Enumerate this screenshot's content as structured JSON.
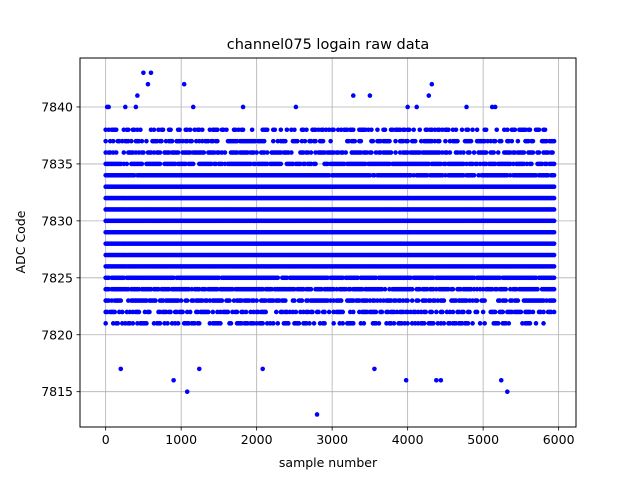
{
  "chart_data": {
    "type": "scatter",
    "title": "channel075 logain raw data",
    "xlabel": "sample number",
    "ylabel": "ADC Code",
    "xlim": [
      -340,
      6230
    ],
    "ylim": [
      7811.9,
      7844.3
    ],
    "xticks": [
      0,
      1000,
      2000,
      3000,
      4000,
      5000,
      6000
    ],
    "yticks": [
      7815,
      7820,
      7825,
      7830,
      7835,
      7840
    ],
    "grid": true,
    "marker_color": "#0000ff",
    "x_range": [
      0,
      5940
    ],
    "x_step": 20,
    "dense_level_range": [
      7821,
      7838
    ],
    "series": [
      {
        "outliers": [
          {
            "x": 20,
            "y": 7840
          },
          {
            "x": 40,
            "y": 7840
          },
          {
            "x": 200,
            "y": 7817
          },
          {
            "x": 260,
            "y": 7840
          },
          {
            "x": 400,
            "y": 7840
          },
          {
            "x": 420,
            "y": 7841
          },
          {
            "x": 500,
            "y": 7843
          },
          {
            "x": 560,
            "y": 7842
          },
          {
            "x": 600,
            "y": 7843
          },
          {
            "x": 900,
            "y": 7816
          },
          {
            "x": 1040,
            "y": 7842
          },
          {
            "x": 1080,
            "y": 7815
          },
          {
            "x": 1160,
            "y": 7840
          },
          {
            "x": 1240,
            "y": 7817
          },
          {
            "x": 1820,
            "y": 7840
          },
          {
            "x": 2080,
            "y": 7817
          },
          {
            "x": 2520,
            "y": 7840
          },
          {
            "x": 2800,
            "y": 7813
          },
          {
            "x": 3280,
            "y": 7841
          },
          {
            "x": 3500,
            "y": 7841
          },
          {
            "x": 3560,
            "y": 7817
          },
          {
            "x": 3980,
            "y": 7816
          },
          {
            "x": 4000,
            "y": 7840
          },
          {
            "x": 4120,
            "y": 7840
          },
          {
            "x": 4280,
            "y": 7841
          },
          {
            "x": 4320,
            "y": 7842
          },
          {
            "x": 4380,
            "y": 7816
          },
          {
            "x": 4440,
            "y": 7816
          },
          {
            "x": 4780,
            "y": 7840
          },
          {
            "x": 5120,
            "y": 7840
          },
          {
            "x": 5160,
            "y": 7840
          },
          {
            "x": 5240,
            "y": 7816
          },
          {
            "x": 5320,
            "y": 7815
          }
        ]
      }
    ]
  }
}
